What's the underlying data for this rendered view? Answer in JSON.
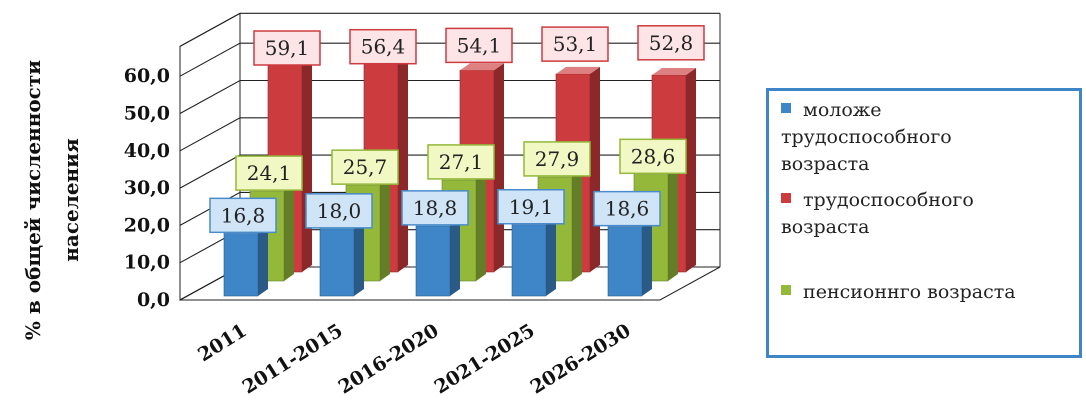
{
  "chart_data": {
    "type": "bar",
    "ylabel_lines": [
      "% в общей численности",
      "населения"
    ],
    "xlabel": "",
    "categories": [
      "2011",
      "2011-2015",
      "2016-2020",
      "2021-2025",
      "2026-2030"
    ],
    "series": [
      {
        "name": "моложе трудоспособного возраста",
        "legend_lines": [
          "моложе",
          "трудоспособного",
          "возраста"
        ],
        "color": "#3e86c8",
        "labels": [
          "16,8",
          "18,0",
          "18,8",
          "19,1",
          "18,6"
        ],
        "values": [
          16.8,
          18.0,
          18.8,
          19.1,
          18.6
        ]
      },
      {
        "name": "трудоспособного возраста",
        "legend_lines": [
          "трудоспособного",
          "возраста"
        ],
        "color": "#cc3b3e",
        "labels": [
          "59,1",
          "56,4",
          "54,1",
          "53,1",
          "52,8"
        ],
        "values": [
          59.1,
          56.4,
          54.1,
          53.1,
          52.8
        ]
      },
      {
        "name": "пенсионнго возраста",
        "legend_lines": [
          "пенсионнго возраста"
        ],
        "color": "#93b83a",
        "labels": [
          "24,1",
          "25,7",
          "27,1",
          "27,9",
          "28,6"
        ],
        "values": [
          24.1,
          25.7,
          27.1,
          27.9,
          28.6
        ]
      }
    ],
    "yticks": [
      "0,0",
      "10,0",
      "20,0",
      "30,0",
      "40,0",
      "50,0",
      "60,0"
    ],
    "ylim": [
      0,
      60
    ],
    "grid": true,
    "legend_position": "right"
  }
}
